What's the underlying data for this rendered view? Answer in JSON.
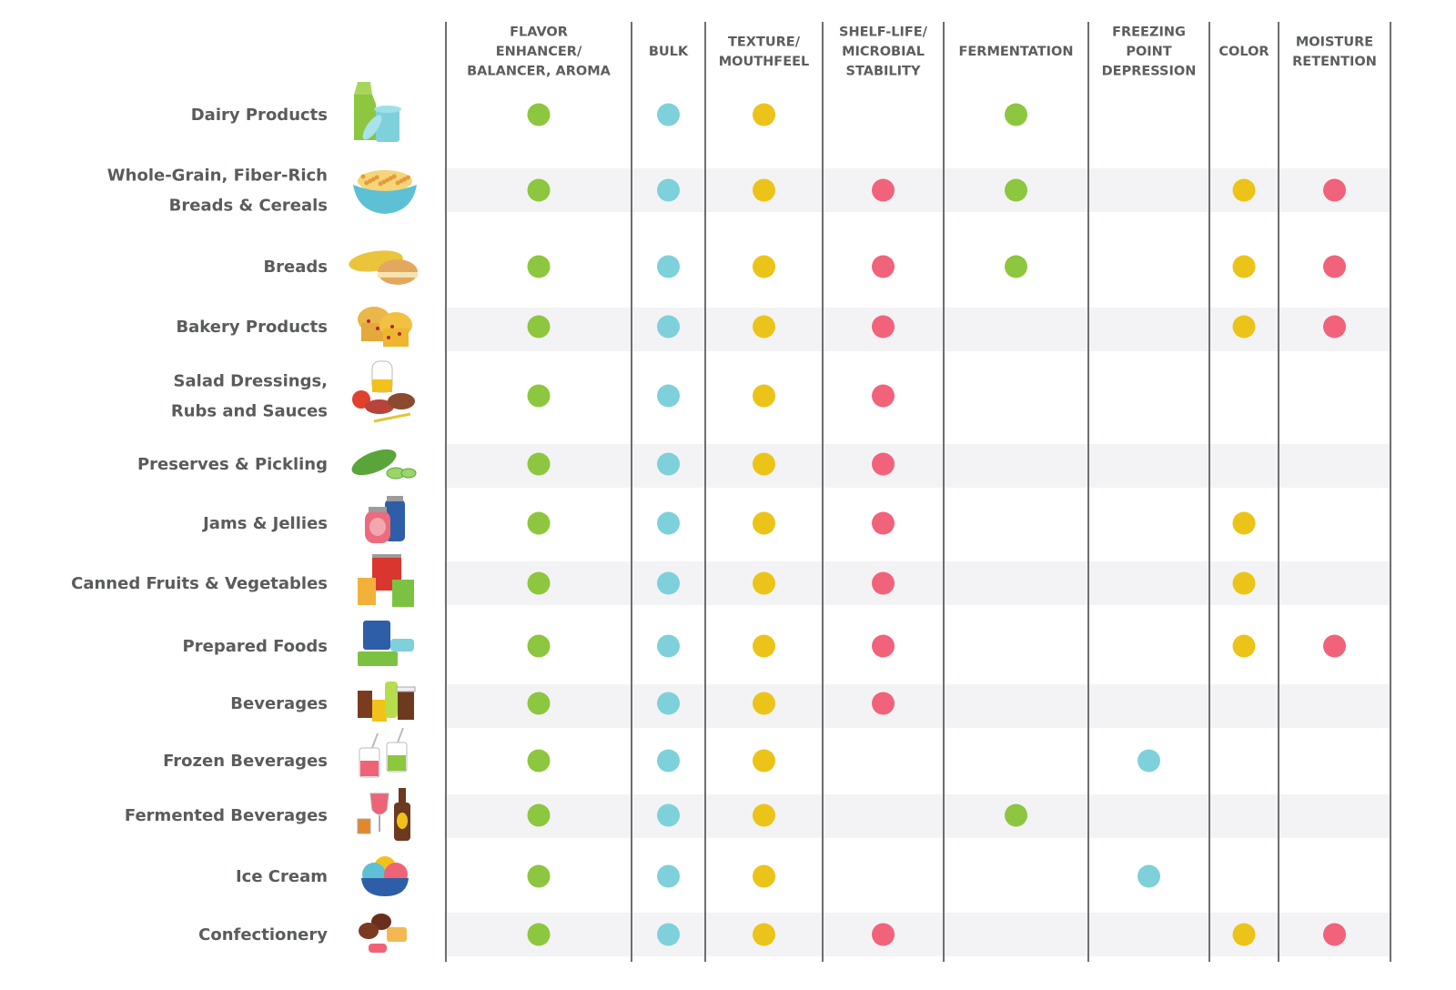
{
  "chart_data": {
    "type": "table",
    "title": "",
    "columns": [
      {
        "key": "flavor",
        "label_lines": [
          "FLAVOR",
          "ENHANCER/",
          "BALANCER, AROMA"
        ],
        "color": "#8dc63f"
      },
      {
        "key": "bulk",
        "label_lines": [
          "BULK"
        ],
        "color": "#7ed0db"
      },
      {
        "key": "texture",
        "label_lines": [
          "TEXTURE/",
          "MOUTHFEEL"
        ],
        "color": "#ecc319"
      },
      {
        "key": "shelf",
        "label_lines": [
          "SHELF-LIFE/",
          "MICROBIAL",
          "STABILITY"
        ],
        "color": "#f0637a"
      },
      {
        "key": "fermentation",
        "label_lines": [
          "FERMENTATION"
        ],
        "color": "#8dc63f"
      },
      {
        "key": "freezing",
        "label_lines": [
          "FREEZING",
          "POINT",
          "DEPRESSION"
        ],
        "color": "#7ed0db"
      },
      {
        "key": "color",
        "label_lines": [
          "COLOR"
        ],
        "color": "#ecc319"
      },
      {
        "key": "moisture",
        "label_lines": [
          "MOISTURE",
          "RETENTION"
        ],
        "color": "#f0637a"
      }
    ],
    "rows": [
      {
        "label_lines": [
          "Dairy Products"
        ],
        "icon": "milk-carton-cup-icon",
        "values": [
          1,
          1,
          1,
          0,
          1,
          0,
          0,
          0
        ]
      },
      {
        "label_lines": [
          "Whole-Grain, Fiber-Rich",
          "Breads & Cereals"
        ],
        "icon": "cereal-bowl-icon",
        "values": [
          1,
          1,
          1,
          1,
          1,
          0,
          1,
          1
        ]
      },
      {
        "label_lines": [
          "Breads"
        ],
        "icon": "bread-loaf-bun-icon",
        "values": [
          1,
          1,
          1,
          1,
          1,
          0,
          1,
          1
        ]
      },
      {
        "label_lines": [
          "Bakery Products"
        ],
        "icon": "muffins-icon",
        "values": [
          1,
          1,
          1,
          1,
          0,
          0,
          1,
          1
        ]
      },
      {
        "label_lines": [
          "Salad Dressings,",
          "Rubs and Sauces"
        ],
        "icon": "oil-sauces-icon",
        "values": [
          1,
          1,
          1,
          1,
          0,
          0,
          0,
          0
        ]
      },
      {
        "label_lines": [
          "Preserves & Pickling"
        ],
        "icon": "pickle-icon",
        "values": [
          1,
          1,
          1,
          1,
          0,
          0,
          0,
          0
        ]
      },
      {
        "label_lines": [
          "Jams & Jellies"
        ],
        "icon": "jam-jars-icon",
        "values": [
          1,
          1,
          1,
          1,
          0,
          0,
          1,
          0
        ]
      },
      {
        "label_lines": [
          "Canned Fruits & Vegetables"
        ],
        "icon": "cans-icon",
        "values": [
          1,
          1,
          1,
          1,
          0,
          0,
          1,
          0
        ]
      },
      {
        "label_lines": [
          "Prepared Foods"
        ],
        "icon": "food-containers-icon",
        "values": [
          1,
          1,
          1,
          1,
          0,
          0,
          1,
          1
        ]
      },
      {
        "label_lines": [
          "Beverages"
        ],
        "icon": "drinks-icon",
        "values": [
          1,
          1,
          1,
          1,
          0,
          0,
          0,
          0
        ]
      },
      {
        "label_lines": [
          "Frozen Beverages"
        ],
        "icon": "frozen-drinks-icon",
        "values": [
          1,
          1,
          1,
          0,
          0,
          1,
          0,
          0
        ]
      },
      {
        "label_lines": [
          "Fermented Beverages"
        ],
        "icon": "wine-beer-icon",
        "values": [
          1,
          1,
          1,
          0,
          1,
          0,
          0,
          0
        ]
      },
      {
        "label_lines": [
          "Ice Cream"
        ],
        "icon": "ice-cream-bowl-icon",
        "values": [
          1,
          1,
          1,
          0,
          0,
          1,
          0,
          0
        ]
      },
      {
        "label_lines": [
          "Confectionery"
        ],
        "icon": "candies-icon",
        "values": [
          1,
          1,
          1,
          1,
          0,
          0,
          1,
          1
        ]
      }
    ],
    "stripe_color": "#f3f3f5",
    "line_color": "#6d6e70"
  }
}
